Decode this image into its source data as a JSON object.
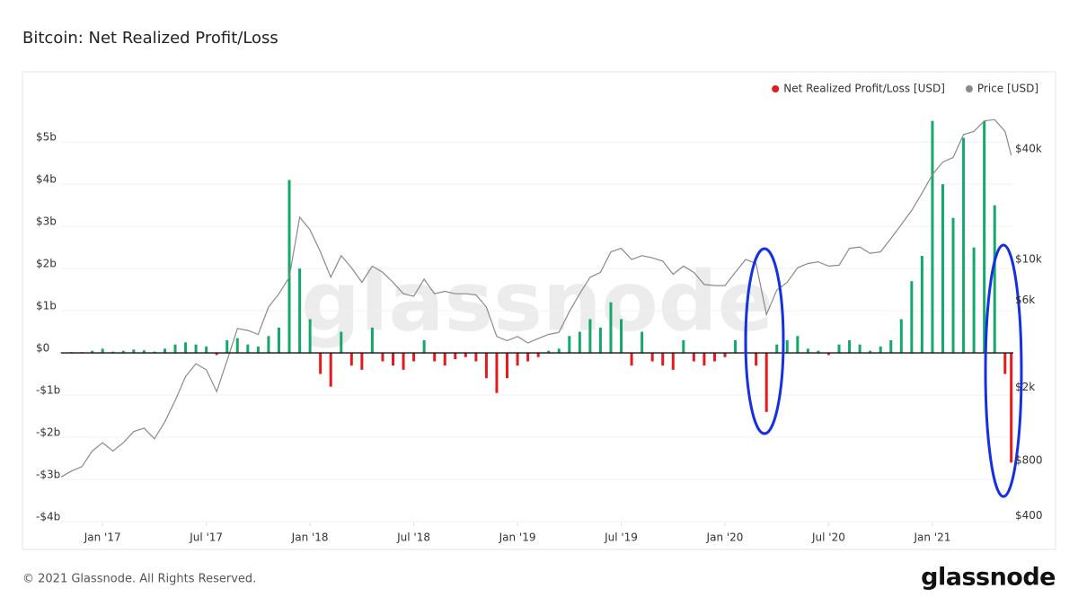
{
  "chart_data": {
    "type": "line",
    "title": "Bitcoin: Net Realized Profit/Loss",
    "watermark": "glassnode",
    "legend": "top-right",
    "grid": true,
    "xlim": [
      2016.8,
      2021.39
    ],
    "xticks": [
      {
        "value": 2017,
        "label": "Jan '17"
      },
      {
        "value": 2017.5,
        "label": "Jul '17"
      },
      {
        "value": 2018,
        "label": "Jan '18"
      },
      {
        "value": 2018.5,
        "label": "Jul '18"
      },
      {
        "value": 2019,
        "label": "Jan '19"
      },
      {
        "value": 2019.5,
        "label": "Jul '19"
      },
      {
        "value": 2020,
        "label": "Jan '20"
      },
      {
        "value": 2020.5,
        "label": "Jul '20"
      },
      {
        "value": 2021,
        "label": "Jan '21"
      }
    ],
    "ylim": [
      -4,
      5.6
    ],
    "yticks": [
      {
        "value": 5,
        "label": "$5b"
      },
      {
        "value": 4,
        "label": "$4b"
      },
      {
        "value": 3,
        "label": "$3b"
      },
      {
        "value": 2,
        "label": "$2b"
      },
      {
        "value": 1,
        "label": "$1b"
      },
      {
        "value": 0,
        "label": "$0"
      },
      {
        "value": -1,
        "label": "-$1b"
      },
      {
        "value": -2,
        "label": "-$2b"
      },
      {
        "value": -3,
        "label": "-$3b"
      },
      {
        "value": -4,
        "label": "-$4b"
      }
    ],
    "y2_scale": "log",
    "y2lim": [
      371,
      60100
    ],
    "y2ticks": [
      {
        "value": 40000,
        "label": "$40k"
      },
      {
        "value": 10000,
        "label": "$10k"
      },
      {
        "value": 6000,
        "label": "$6k"
      },
      {
        "value": 2000,
        "label": "$2k"
      },
      {
        "value": 800,
        "label": "$800"
      },
      {
        "value": 400,
        "label": "$400"
      }
    ],
    "x": [
      2016.8,
      2016.85,
      2016.9,
      2016.95,
      2017.0,
      2017.05,
      2017.1,
      2017.15,
      2017.2,
      2017.25,
      2017.3,
      2017.35,
      2017.4,
      2017.45,
      2017.5,
      2017.55,
      2017.6,
      2017.65,
      2017.7,
      2017.75,
      2017.8,
      2017.85,
      2017.9,
      2017.95,
      2018.0,
      2018.05,
      2018.1,
      2018.15,
      2018.2,
      2018.25,
      2018.3,
      2018.35,
      2018.4,
      2018.45,
      2018.5,
      2018.55,
      2018.6,
      2018.65,
      2018.7,
      2018.75,
      2018.8,
      2018.85,
      2018.9,
      2018.95,
      2019.0,
      2019.05,
      2019.1,
      2019.15,
      2019.2,
      2019.25,
      2019.3,
      2019.35,
      2019.4,
      2019.45,
      2019.5,
      2019.55,
      2019.6,
      2019.65,
      2019.7,
      2019.75,
      2019.8,
      2019.85,
      2019.9,
      2019.95,
      2020.0,
      2020.05,
      2020.1,
      2020.15,
      2020.2,
      2020.25,
      2020.3,
      2020.35,
      2020.4,
      2020.45,
      2020.5,
      2020.55,
      2020.6,
      2020.65,
      2020.7,
      2020.75,
      2020.8,
      2020.85,
      2020.9,
      2020.95,
      2021.0,
      2021.05,
      2021.1,
      2021.15,
      2021.2,
      2021.25,
      2021.3,
      2021.35,
      2021.38
    ],
    "series": [
      {
        "name": "Net Realized Profit/Loss [USD]",
        "color": "#e41a1c",
        "positive_color": "#14a96b",
        "values": [
          0.01,
          0.02,
          0.02,
          0.05,
          0.1,
          0.03,
          0.05,
          0.08,
          0.06,
          0.03,
          0.1,
          0.2,
          0.25,
          0.2,
          0.15,
          -0.05,
          0.3,
          0.35,
          0.2,
          0.15,
          0.4,
          0.6,
          4.1,
          2.0,
          0.8,
          -0.5,
          -0.8,
          0.5,
          -0.3,
          -0.4,
          0.6,
          -0.2,
          -0.3,
          -0.4,
          -0.2,
          0.3,
          -0.2,
          -0.3,
          -0.15,
          -0.1,
          -0.2,
          -0.6,
          -0.95,
          -0.6,
          -0.3,
          -0.2,
          -0.1,
          0.05,
          0.1,
          0.4,
          0.5,
          0.8,
          0.6,
          1.2,
          0.8,
          -0.3,
          0.5,
          -0.2,
          -0.3,
          -0.4,
          0.3,
          -0.2,
          -0.3,
          -0.2,
          -0.1,
          0.3,
          0.6,
          -0.3,
          -1.4,
          0.2,
          0.3,
          0.4,
          0.1,
          0.05,
          -0.05,
          0.2,
          0.3,
          0.2,
          0.05,
          0.15,
          0.3,
          0.8,
          1.7,
          2.3,
          5.5,
          4.0,
          3.2,
          5.1,
          2.5,
          5.5,
          3.5,
          -0.5,
          -2.6
        ]
      },
      {
        "name": "Price [USD]",
        "color": "#8a8a8a",
        "axis": "y2",
        "values": [
          650,
          700,
          740,
          900,
          1000,
          900,
          1000,
          1150,
          1200,
          1050,
          1300,
          1700,
          2300,
          2700,
          2500,
          1900,
          2800,
          4200,
          4100,
          3900,
          5500,
          6500,
          8000,
          17000,
          14500,
          11000,
          8000,
          10500,
          9000,
          7500,
          9200,
          8500,
          7500,
          6500,
          6300,
          7800,
          6500,
          6700,
          6500,
          6500,
          6400,
          5500,
          3800,
          3600,
          3800,
          3500,
          3700,
          3900,
          4000,
          5200,
          6500,
          8000,
          8500,
          11000,
          11500,
          10000,
          10500,
          10200,
          9800,
          8300,
          9200,
          8500,
          7300,
          7200,
          7200,
          8500,
          10000,
          9500,
          5000,
          6800,
          7500,
          9000,
          9500,
          9700,
          9200,
          9300,
          11500,
          11700,
          10800,
          11000,
          13000,
          15500,
          18500,
          23000,
          29000,
          34000,
          36000,
          48000,
          50000,
          57000,
          58000,
          50000,
          37000
        ]
      }
    ]
  },
  "footer": "© 2021 Glassnode. All Rights Reserved.",
  "brand": "glassnode"
}
